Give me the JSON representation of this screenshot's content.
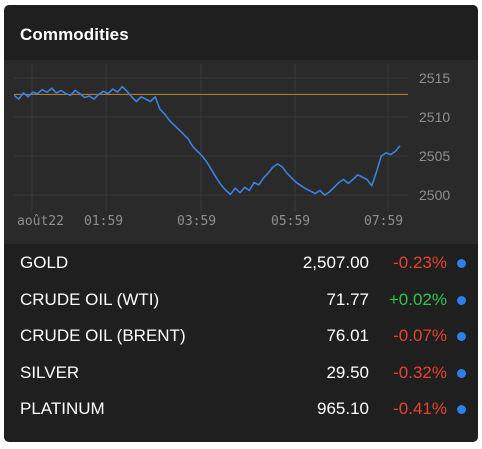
{
  "widget": {
    "title": "Commodities"
  },
  "colors": {
    "background": "#1f1f1f",
    "chart_background": "#2a2a2a",
    "line": "#3b82e0",
    "reference_line": "#b07a2e",
    "negative": "#e8422f",
    "positive": "#2dc64c",
    "status_dot": "#2f7fe8",
    "axis_text": "#8f8f8f"
  },
  "chart_data": {
    "type": "line",
    "x_tick_labels": [
      "août22",
      "01:59",
      "03:59",
      "05:59",
      "07:59"
    ],
    "y_tick_labels": [
      "2515",
      "2510",
      "2505",
      "2500"
    ],
    "y_ticks": [
      2515,
      2510,
      2505,
      2500
    ],
    "ylim": [
      2498.6,
      2516.8
    ],
    "reference_value": 2512.9,
    "grid": true,
    "series": [
      {
        "values": [
          2512.8,
          2512.3,
          2513.1,
          2512.6,
          2513.2,
          2513.0,
          2513.5,
          2513.2,
          2513.7,
          2513.1,
          2513.4,
          2513.0,
          2512.8,
          2513.4,
          2513.0,
          2512.5,
          2512.7,
          2512.3,
          2512.9,
          2513.3,
          2513.0,
          2513.6,
          2513.2,
          2513.9,
          2513.3,
          2512.6,
          2512.0,
          2512.6,
          2512.3,
          2512.0,
          2512.6,
          2511.0,
          2510.4,
          2509.6,
          2509.0,
          2508.4,
          2507.8,
          2507.2,
          2506.2,
          2505.6,
          2505.0,
          2504.2,
          2503.2,
          2502.2,
          2501.3,
          2500.6,
          2500.1,
          2500.9,
          2500.3,
          2501.0,
          2500.6,
          2501.6,
          2501.3,
          2502.2,
          2502.8,
          2503.6,
          2504.0,
          2503.6,
          2502.8,
          2502.2,
          2501.6,
          2501.2,
          2500.8,
          2500.5,
          2500.2,
          2500.6,
          2500.0,
          2500.4,
          2501.0,
          2501.6,
          2502.0,
          2501.5,
          2502.0,
          2502.6,
          2502.3,
          2502.0,
          2501.2,
          2503.0,
          2505.0,
          2505.4,
          2505.2,
          2505.6,
          2506.3
        ]
      }
    ]
  },
  "quotes": [
    {
      "name": "GOLD",
      "price": "2,507.00",
      "change": "-0.23%",
      "direction": "negative"
    },
    {
      "name": "CRUDE OIL (WTI)",
      "price": "71.77",
      "change": "+0.02%",
      "direction": "positive"
    },
    {
      "name": "CRUDE OIL (BRENT)",
      "price": "76.01",
      "change": "-0.07%",
      "direction": "negative"
    },
    {
      "name": "SILVER",
      "price": "29.50",
      "change": "-0.32%",
      "direction": "negative"
    },
    {
      "name": "PLATINUM",
      "price": "965.10",
      "change": "-0.41%",
      "direction": "negative"
    }
  ]
}
